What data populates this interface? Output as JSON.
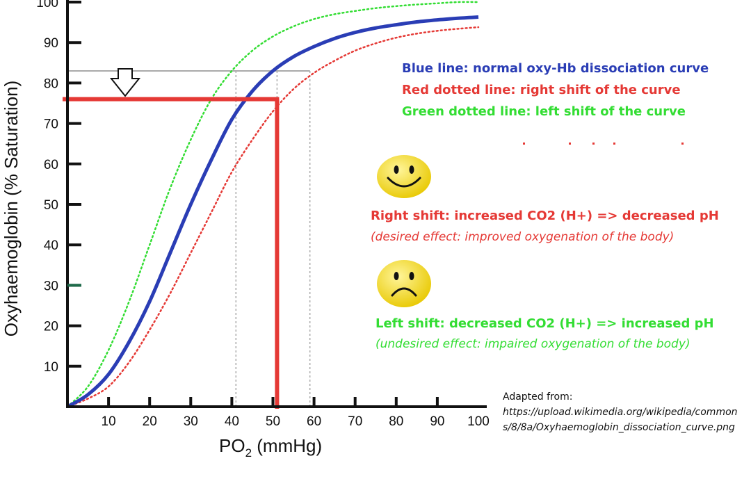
{
  "chart_data": {
    "type": "line",
    "title": "",
    "xlabel": "PO",
    "xlabel_subscript": "2",
    "xlabel_unit": " (mmHg)",
    "ylabel": "Oxyhaemoglobin (% Saturation)",
    "xlim": [
      0,
      100
    ],
    "ylim": [
      0,
      100
    ],
    "x_ticks": [
      10,
      20,
      30,
      40,
      50,
      60,
      70,
      80,
      90,
      100
    ],
    "y_ticks": [
      10,
      20,
      30,
      40,
      50,
      60,
      70,
      80,
      90,
      100
    ],
    "x": [
      0,
      5,
      10,
      15,
      20,
      25,
      30,
      35,
      40,
      45,
      50,
      55,
      60,
      65,
      70,
      75,
      80,
      85,
      90,
      95,
      100
    ],
    "series": [
      {
        "name": "normal oxy-Hb dissociation curve",
        "style": "solid",
        "color": "#2a3db5",
        "values": [
          0,
          3,
          8,
          16,
          26,
          38,
          50,
          61,
          71,
          78,
          83,
          86.5,
          89,
          91,
          92.5,
          93.6,
          94.4,
          95.1,
          95.6,
          96,
          96.3
        ]
      },
      {
        "name": "right shift of the curve",
        "style": "dotted",
        "color": "#e53935",
        "values": [
          0,
          2,
          5,
          11,
          19,
          28,
          38,
          48,
          58,
          66,
          73,
          78.5,
          82.5,
          85.5,
          88,
          89.8,
          91.2,
          92.2,
          92.9,
          93.4,
          93.8
        ]
      },
      {
        "name": "left shift of the curve",
        "style": "dotted",
        "color": "#33dd33",
        "values": [
          0,
          5,
          14,
          26,
          40,
          54,
          66,
          76,
          83,
          88,
          91.5,
          94,
          95.8,
          97,
          97.8,
          98.5,
          99,
          99.4,
          99.7,
          100,
          100
        ]
      }
    ],
    "reference_lines": {
      "grey_horizontal_y": 83,
      "grey_vertical_x": [
        41,
        51,
        59
      ],
      "red_horizontal_y": 76,
      "red_vertical_x": 51
    },
    "y_marker_value": 30
  },
  "legend": {
    "blue": "Blue line: normal oxy-Hb dissociation curve",
    "red": "Red dotted line: right shift of the curve",
    "green": "Green dotted line: left shift of the curve"
  },
  "right_shift": {
    "title": "Right shift: increased CO2 (H+) => decreased pH",
    "note": "(desired effect: improved oxygenation of the body)"
  },
  "left_shift": {
    "title": "Left shift: decreased CO2 (H+) => increased pH",
    "note": "(undesired effect: impaired oxygenation of the body)"
  },
  "source": {
    "label": "Adapted from:",
    "url": "https://upload.wikimedia.org/wikipedia/commons/8/8a/Oxyhaemoglobin_dissociation_curve.png"
  },
  "colors": {
    "blue": "#2a3db5",
    "red": "#e53935",
    "green": "#33dd33",
    "grey": "#aaaaaa",
    "face_yellow": "#f4e21a",
    "marker_green": "#1d6b4a"
  },
  "icons": {
    "happy": "smiley-face-icon",
    "sad": "sad-face-icon",
    "arrow": "down-arrow-icon"
  }
}
